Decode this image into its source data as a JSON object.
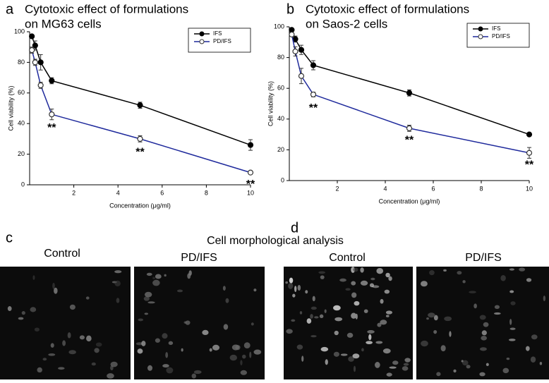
{
  "chart_data": [
    {
      "type": "line",
      "panel": "a",
      "title": [
        "Cytotoxic effect of formulations",
        "on MG63 cells"
      ],
      "x_label": "Concentration (μg/ml)",
      "y_label": "Cell viability (%)",
      "x": [
        0.1,
        0.25,
        0.5,
        1,
        5,
        10
      ],
      "series": [
        {
          "name": "IFS",
          "color": "#000000",
          "marker": "filled",
          "values": [
            97,
            91,
            80,
            68,
            52,
            26
          ],
          "errors": [
            1,
            3,
            5,
            2,
            2,
            3.5
          ]
        },
        {
          "name": "PD/IFS",
          "color": "#1f2a9c",
          "marker": "open",
          "values": [
            88,
            80,
            65,
            46,
            30,
            8
          ],
          "errors": [
            2,
            2,
            2,
            3.5,
            2,
            1
          ]
        }
      ],
      "xlim": [
        0,
        10
      ],
      "xticks": [
        2,
        4,
        6,
        8,
        10
      ],
      "ylim": [
        0,
        100
      ],
      "yticks": [
        0,
        20,
        40,
        60,
        80,
        100
      ],
      "legend": "upper right",
      "annotations": [
        {
          "text": "**",
          "x": 1,
          "y": 37
        },
        {
          "text": "**",
          "x": 5,
          "y": 21
        },
        {
          "text": "**",
          "x": 10,
          "y": 0
        }
      ]
    },
    {
      "type": "line",
      "panel": "b",
      "title": [
        "Cytotoxic effect of formulations",
        "on Saos-2 cells"
      ],
      "x_label": "Concentration (μg/ml)",
      "y_label": "Cell viability (%)",
      "x": [
        0.1,
        0.25,
        0.5,
        1,
        5,
        10
      ],
      "series": [
        {
          "name": "IFS",
          "color": "#000000",
          "marker": "filled",
          "values": [
            98,
            92,
            85,
            75,
            57,
            30
          ],
          "errors": [
            1,
            2,
            3,
            3,
            2,
            1
          ]
        },
        {
          "name": "PD/IFS",
          "color": "#1f2a9c",
          "marker": "open",
          "values": [
            95,
            84,
            68,
            56,
            34,
            18
          ],
          "errors": [
            1,
            3,
            5,
            1.5,
            2,
            3.5
          ]
        }
      ],
      "xlim": [
        0,
        10
      ],
      "xticks": [
        2,
        4,
        6,
        8,
        10
      ],
      "ylim": [
        0,
        100
      ],
      "yticks": [
        0,
        20,
        40,
        60,
        80,
        100
      ],
      "legend": "upper right",
      "annotations": [
        {
          "text": "**",
          "x": 1,
          "y": 47
        },
        {
          "text": "**",
          "x": 5,
          "y": 26
        },
        {
          "text": "**",
          "x": 10,
          "y": 10
        }
      ]
    }
  ],
  "morphology": {
    "title": "Cell morphological analysis",
    "panels": [
      {
        "letter": "c",
        "labels": [
          "Control",
          "PD/IFS"
        ]
      },
      {
        "letter": "d",
        "labels": [
          "Control",
          "PD/IFS"
        ]
      }
    ]
  }
}
